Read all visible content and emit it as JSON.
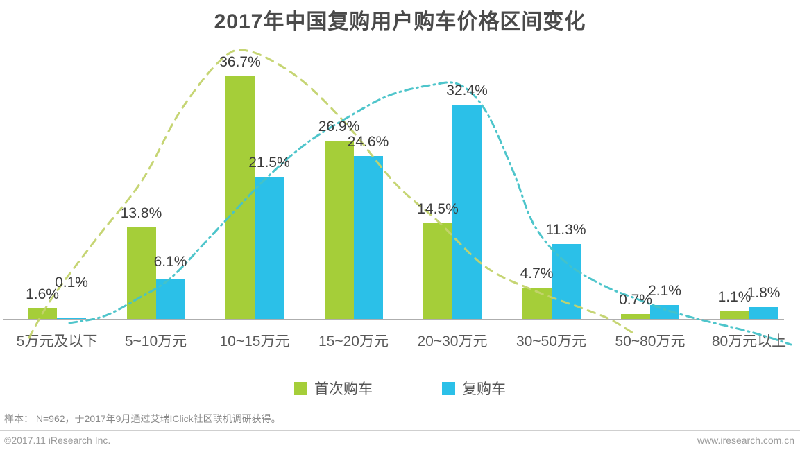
{
  "title": "2017年中国复购用户购车价格区间变化",
  "chart_data": {
    "type": "bar",
    "title": "2017年中国复购用户购车价格区间变化",
    "categories": [
      "5万元及以下",
      "5~10万元",
      "10~15万元",
      "15~20万元",
      "20~30万元",
      "30~50万元",
      "50~80万元",
      "80万元以上"
    ],
    "series": [
      {
        "name": "首次购车",
        "color": "#a5ce39",
        "curve_color": "#c3d36d",
        "values": [
          1.6,
          13.8,
          36.7,
          26.9,
          14.5,
          4.7,
          0.7,
          1.1
        ]
      },
      {
        "name": "复购车",
        "color": "#2bc0e8",
        "curve_color": "#45c2c8",
        "values": [
          0.1,
          6.1,
          21.5,
          24.6,
          32.4,
          11.3,
          2.1,
          1.8
        ]
      }
    ],
    "value_suffix": "%",
    "data_labels": true,
    "trend_lines": true,
    "grid": false,
    "legend_position": "bottom",
    "ylim": [
      0,
      40
    ],
    "axis_color": "#aeaeae"
  },
  "footer": {
    "sample_note": "样本： N=962，于2017年9月通过艾瑞IClick社区联机调研获得。",
    "copyright": "©2017.11 iResearch Inc.",
    "website": "www.iresearch.com.cn"
  }
}
